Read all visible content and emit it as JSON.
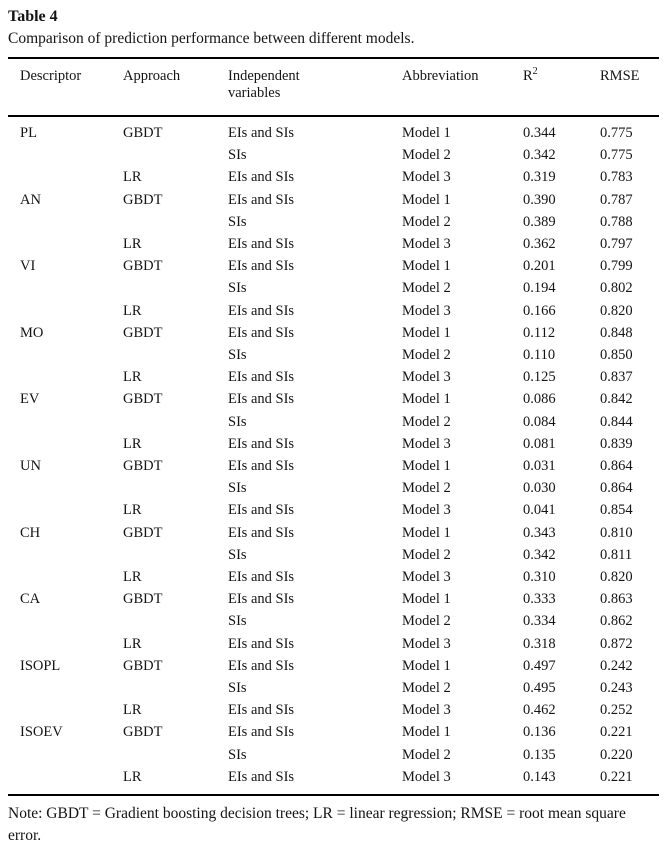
{
  "doc": {
    "title": "Table 4",
    "caption": "Comparison of prediction performance between different models.",
    "note": "Note: GBDT = Gradient boosting decision trees; LR = linear regression; RMSE = root mean square error."
  },
  "table": {
    "columns": {
      "descriptor": "Descriptor",
      "approach": "Approach",
      "independent": "Independent variables",
      "abbreviation": "Abbreviation",
      "r2_base": "R",
      "r2_sup": "2",
      "rmse": "RMSE"
    },
    "rows": [
      {
        "descriptor": "PL",
        "approach": "GBDT",
        "independent": "EIs and SIs",
        "abbreviation": "Model 1",
        "r2": "0.344",
        "rmse": "0.775"
      },
      {
        "descriptor": "",
        "approach": "",
        "independent": "SIs",
        "abbreviation": "Model 2",
        "r2": "0.342",
        "rmse": "0.775"
      },
      {
        "descriptor": "",
        "approach": "LR",
        "independent": "EIs and SIs",
        "abbreviation": "Model 3",
        "r2": "0.319",
        "rmse": "0.783"
      },
      {
        "descriptor": "AN",
        "approach": "GBDT",
        "independent": "EIs and SIs",
        "abbreviation": "Model 1",
        "r2": "0.390",
        "rmse": "0.787"
      },
      {
        "descriptor": "",
        "approach": "",
        "independent": "SIs",
        "abbreviation": "Model 2",
        "r2": "0.389",
        "rmse": "0.788"
      },
      {
        "descriptor": "",
        "approach": "LR",
        "independent": "EIs and SIs",
        "abbreviation": "Model 3",
        "r2": "0.362",
        "rmse": "0.797"
      },
      {
        "descriptor": "VI",
        "approach": "GBDT",
        "independent": "EIs and SIs",
        "abbreviation": "Model 1",
        "r2": "0.201",
        "rmse": "0.799"
      },
      {
        "descriptor": "",
        "approach": "",
        "independent": "SIs",
        "abbreviation": "Model 2",
        "r2": "0.194",
        "rmse": "0.802"
      },
      {
        "descriptor": "",
        "approach": "LR",
        "independent": "EIs and SIs",
        "abbreviation": "Model 3",
        "r2": "0.166",
        "rmse": "0.820"
      },
      {
        "descriptor": "MO",
        "approach": "GBDT",
        "independent": "EIs and SIs",
        "abbreviation": "Model 1",
        "r2": "0.112",
        "rmse": "0.848"
      },
      {
        "descriptor": "",
        "approach": "",
        "independent": "SIs",
        "abbreviation": "Model 2",
        "r2": "0.110",
        "rmse": "0.850"
      },
      {
        "descriptor": "",
        "approach": "LR",
        "independent": "EIs and SIs",
        "abbreviation": "Model 3",
        "r2": "0.125",
        "rmse": "0.837"
      },
      {
        "descriptor": "EV",
        "approach": "GBDT",
        "independent": "EIs and SIs",
        "abbreviation": "Model 1",
        "r2": "0.086",
        "rmse": "0.842"
      },
      {
        "descriptor": "",
        "approach": "",
        "independent": "SIs",
        "abbreviation": "Model 2",
        "r2": "0.084",
        "rmse": "0.844"
      },
      {
        "descriptor": "",
        "approach": "LR",
        "independent": "EIs and SIs",
        "abbreviation": "Model 3",
        "r2": "0.081",
        "rmse": "0.839"
      },
      {
        "descriptor": "UN",
        "approach": "GBDT",
        "independent": "EIs and SIs",
        "abbreviation": "Model 1",
        "r2": "0.031",
        "rmse": "0.864"
      },
      {
        "descriptor": "",
        "approach": "",
        "independent": "SIs",
        "abbreviation": "Model 2",
        "r2": "0.030",
        "rmse": "0.864"
      },
      {
        "descriptor": "",
        "approach": "LR",
        "independent": "EIs and SIs",
        "abbreviation": "Model 3",
        "r2": "0.041",
        "rmse": "0.854"
      },
      {
        "descriptor": "CH",
        "approach": "GBDT",
        "independent": "EIs and SIs",
        "abbreviation": "Model 1",
        "r2": "0.343",
        "rmse": "0.810"
      },
      {
        "descriptor": "",
        "approach": "",
        "independent": "SIs",
        "abbreviation": "Model 2",
        "r2": "0.342",
        "rmse": "0.811"
      },
      {
        "descriptor": "",
        "approach": "LR",
        "independent": "EIs and SIs",
        "abbreviation": "Model 3",
        "r2": "0.310",
        "rmse": "0.820"
      },
      {
        "descriptor": "CA",
        "approach": "GBDT",
        "independent": "EIs and SIs",
        "abbreviation": "Model 1",
        "r2": "0.333",
        "rmse": "0.863"
      },
      {
        "descriptor": "",
        "approach": "",
        "independent": "SIs",
        "abbreviation": "Model 2",
        "r2": "0.334",
        "rmse": "0.862"
      },
      {
        "descriptor": "",
        "approach": "LR",
        "independent": "EIs and SIs",
        "abbreviation": "Model 3",
        "r2": "0.318",
        "rmse": "0.872"
      },
      {
        "descriptor": "ISOPL",
        "approach": "GBDT",
        "independent": "EIs and SIs",
        "abbreviation": "Model 1",
        "r2": "0.497",
        "rmse": "0.242"
      },
      {
        "descriptor": "",
        "approach": "",
        "independent": "SIs",
        "abbreviation": "Model 2",
        "r2": "0.495",
        "rmse": "0.243"
      },
      {
        "descriptor": "",
        "approach": "LR",
        "independent": "EIs and SIs",
        "abbreviation": "Model 3",
        "r2": "0.462",
        "rmse": "0.252"
      },
      {
        "descriptor": "ISOEV",
        "approach": "GBDT",
        "independent": "EIs and SIs",
        "abbreviation": "Model 1",
        "r2": "0.136",
        "rmse": "0.221"
      },
      {
        "descriptor": "",
        "approach": "",
        "independent": "SIs",
        "abbreviation": "Model 2",
        "r2": "0.135",
        "rmse": "0.220"
      },
      {
        "descriptor": "",
        "approach": "LR",
        "independent": "EIs and SIs",
        "abbreviation": "Model 3",
        "r2": "0.143",
        "rmse": "0.221"
      }
    ]
  }
}
